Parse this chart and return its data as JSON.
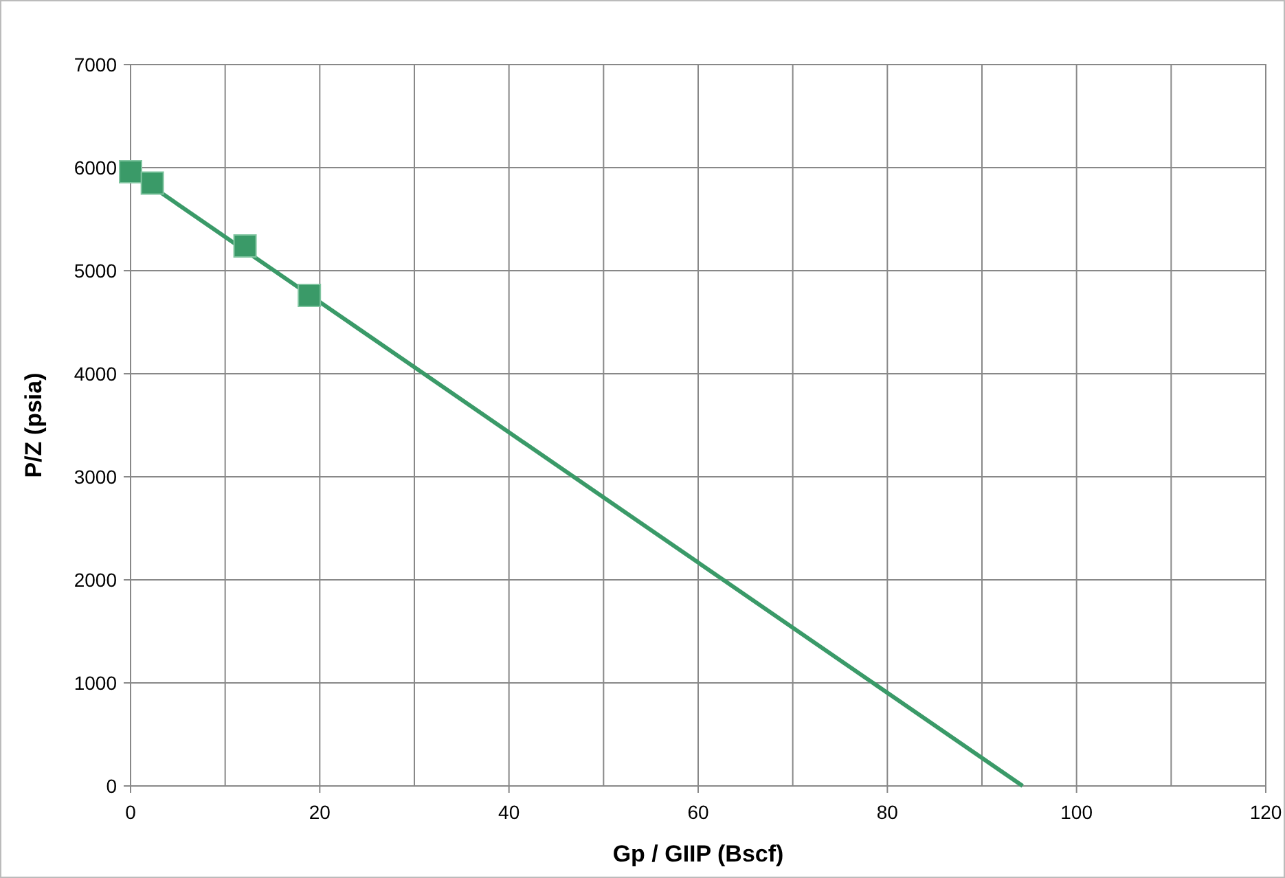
{
  "chart_data": {
    "type": "scatter",
    "xlabel": "Gp / GIIP (Bscf)",
    "ylabel": "P/Z (psia)",
    "xlim": [
      0,
      120
    ],
    "ylim": [
      0,
      7000
    ],
    "xticks": [
      0,
      {
        "value": 10,
        "label": null
      },
      20,
      {
        "value": 30,
        "label": null
      },
      40,
      {
        "value": 50,
        "label": null
      },
      60,
      {
        "value": 70,
        "label": null
      },
      80,
      {
        "value": 90,
        "label": null
      },
      100,
      {
        "value": 110,
        "label": null
      },
      120
    ],
    "yticks": [
      0,
      1000,
      2000,
      3000,
      4000,
      5000,
      6000,
      7000
    ],
    "grid": true,
    "series": [
      {
        "type": "line",
        "color": "#3a9a68",
        "x": [
          0,
          94.3
        ],
        "values": [
          5960,
          0
        ],
        "marker": "none",
        "line_style": "solid"
      },
      {
        "color": "#3a9a68",
        "x": [
          0,
          2.3,
          12.1,
          18.9
        ],
        "values": [
          5960,
          5850,
          5240,
          4760
        ],
        "marker": "square"
      }
    ]
  }
}
